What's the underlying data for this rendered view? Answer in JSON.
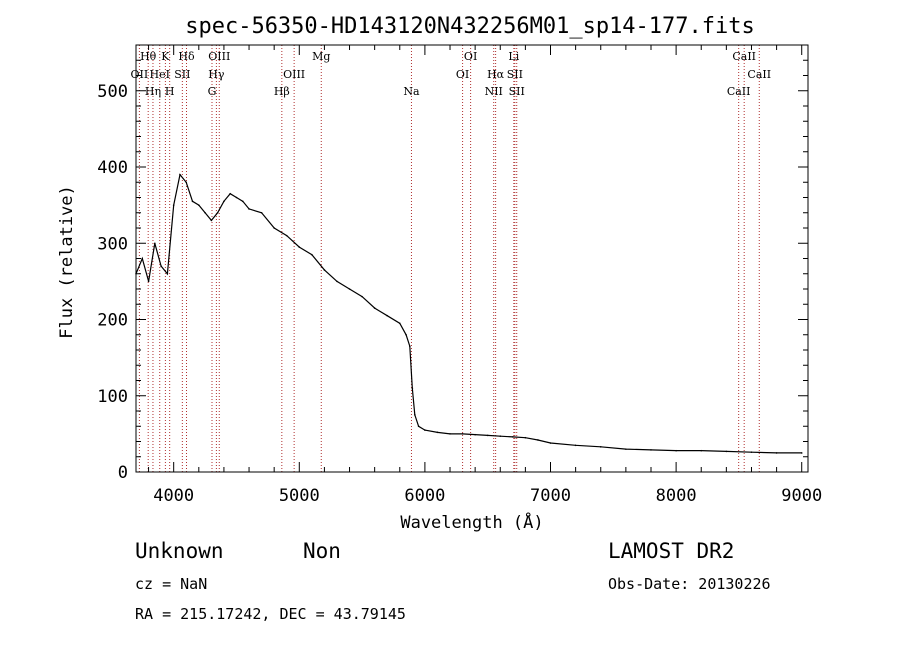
{
  "chart_data": {
    "type": "line",
    "title": "spec-56350-HD143120N432256M01_sp14-177.fits",
    "xlabel": "Wavelength (Å)",
    "ylabel": "Flux (relative)",
    "xlim": [
      3700,
      9050
    ],
    "ylim": [
      0,
      560
    ],
    "xticks": [
      4000,
      5000,
      6000,
      7000,
      8000,
      9000
    ],
    "yticks": [
      0,
      100,
      200,
      300,
      400,
      500
    ],
    "x_tick_labels": [
      "4000",
      "5000",
      "6000",
      "7000",
      "8000",
      "9000"
    ],
    "y_tick_labels": [
      "0",
      "100",
      "200",
      "300",
      "400",
      "500"
    ],
    "grid": false,
    "series": [
      {
        "x": [
          3700,
          3750,
          3800,
          3850,
          3900,
          3950,
          4000,
          4050,
          4100,
          4150,
          4200,
          4250,
          4300,
          4350,
          4400,
          4450,
          4500,
          4550,
          4600,
          4700,
          4800,
          4900,
          5000,
          5100,
          5200,
          5300,
          5400,
          5500,
          5600,
          5700,
          5800,
          5850,
          5880,
          5900,
          5920,
          5950,
          6000,
          6100,
          6200,
          6300,
          6400,
          6500,
          6600,
          6700,
          6800,
          6900,
          7000,
          7200,
          7400,
          7600,
          7800,
          8000,
          8200,
          8400,
          8600,
          8800,
          9000
        ],
        "y": [
          260,
          280,
          250,
          300,
          270,
          260,
          350,
          390,
          380,
          355,
          350,
          340,
          330,
          340,
          355,
          365,
          360,
          355,
          345,
          340,
          320,
          310,
          295,
          285,
          265,
          250,
          240,
          230,
          215,
          205,
          195,
          180,
          165,
          110,
          75,
          60,
          55,
          52,
          50,
          50,
          49,
          48,
          47,
          46,
          45,
          42,
          38,
          35,
          33,
          30,
          29,
          28,
          28,
          27,
          26,
          25,
          25
        ]
      }
    ],
    "spectral_lines": [
      {
        "label": "Hθ",
        "x": 3797,
        "row": 0
      },
      {
        "label": "OII",
        "x": 3727,
        "row": 1
      },
      {
        "label": "Hη",
        "x": 3835,
        "row": 2
      },
      {
        "label": "HeI",
        "x": 3889,
        "row": 1
      },
      {
        "label": "K",
        "x": 3934,
        "row": 0
      },
      {
        "label": "SII",
        "x": 4069,
        "row": 1
      },
      {
        "label": "H",
        "x": 3968,
        "row": 2
      },
      {
        "label": "Hδ",
        "x": 4102,
        "row": 0
      },
      {
        "label": "OIII",
        "x": 4363,
        "row": 0
      },
      {
        "label": "Hγ",
        "x": 4340,
        "row": 1
      },
      {
        "label": "G",
        "x": 4305,
        "row": 2
      },
      {
        "label": "OIII",
        "x": 4959,
        "row": 1
      },
      {
        "label": "Hβ",
        "x": 4861,
        "row": 2
      },
      {
        "label": "Mg",
        "x": 5175,
        "row": 0
      },
      {
        "label": "Na",
        "x": 5893,
        "row": 2
      },
      {
        "label": "OI",
        "x": 6364,
        "row": 0
      },
      {
        "label": "OI",
        "x": 6300,
        "row": 1
      },
      {
        "label": "Hα",
        "x": 6563,
        "row": 1
      },
      {
        "label": "NII",
        "x": 6548,
        "row": 2
      },
      {
        "label": "Li",
        "x": 6708,
        "row": 0
      },
      {
        "label": "SII",
        "x": 6716,
        "row": 1
      },
      {
        "label": "SII",
        "x": 6731,
        "row": 2
      },
      {
        "label": "CaII",
        "x": 8542,
        "row": 0
      },
      {
        "label": "CaII",
        "x": 8662,
        "row": 1
      },
      {
        "label": "CaII",
        "x": 8498,
        "row": 2
      }
    ],
    "colors": {
      "spectrum": "#000000",
      "lines": "#b03030"
    }
  },
  "info": {
    "object_class": "Unknown",
    "subclass": "Non",
    "survey": "LAMOST DR2",
    "cz": "cz = NaN",
    "obs_date": "Obs-Date: 20130226",
    "coords": "RA = 215.17242, DEC =  43.79145"
  }
}
